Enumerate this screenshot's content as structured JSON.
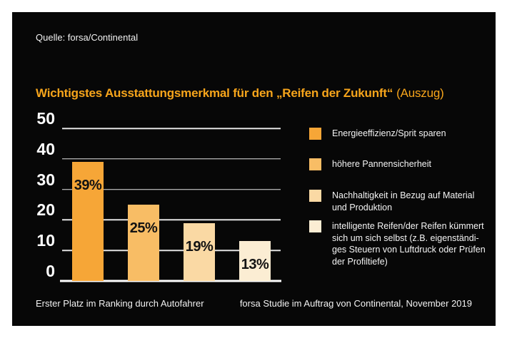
{
  "frame": {
    "source_note": "Quelle: forsa/Continental",
    "footer_left": "Erster Platz im Ranking durch Autofahrer",
    "footer_right": "forsa Studie im Auftrag von Continental, November 2019"
  },
  "title": {
    "main": "Wichtigstes Ausstattungsmerkmal für den „Reifen der Zukunft“",
    "suffix": "(Auszug)"
  },
  "chart_data": {
    "type": "bar",
    "title": "Wichtigstes Ausstattungsmerkmal für den „Reifen der Zukunft“ (Auszug)",
    "categories": [
      "Energieeffizienz/Sprit sparen",
      "höhere Pannensicherheit",
      "Nachhaltigkeit in Bezug auf Material und Produktion",
      "intelligente Reifen/der Reifen kümmert sich um sich selbst (z.B. eigenständiges Steuern von Luftdruck oder Prüfen der Profiltiefe)"
    ],
    "values": [
      39,
      25,
      19,
      13
    ],
    "value_labels": [
      "39%",
      "25%",
      "19%",
      "13%"
    ],
    "bar_colors": [
      "#F6A637",
      "#F8BD65",
      "#FAD9A4",
      "#FBEDD3"
    ],
    "xlabel": "",
    "ylabel": "",
    "ylim": [
      0,
      50
    ],
    "yticks": [
      0,
      10,
      20,
      30,
      40,
      50
    ],
    "grid": true,
    "legend_position": "right"
  },
  "legend": {
    "items": [
      {
        "label": "Energieeffizienz/Sprit sparen",
        "color": "#F6A637"
      },
      {
        "label": "höhere Pannensicherheit",
        "color": "#F8BD65"
      },
      {
        "label": "Nachhaltigkeit in Bezug auf Material\nund Produktion",
        "color": "#FAD9A4"
      },
      {
        "label": "intelligente Reifen/der Reifen kümmert\nsich um sich selbst (z.B. eigenständi-\nges Steuern von Luftdruck oder Prüfen\nder Profiltiefe)",
        "color": "#FBEDD3"
      }
    ]
  },
  "colors": {
    "panel_background": "#070707",
    "frame_background": "#FFFFFF",
    "title_orange": "#F7A51B",
    "gridline": "#E3E3E3",
    "axis_line": "#FFFFFF",
    "text_white": "#F2F2F2",
    "bar_label_black": "#121212"
  }
}
